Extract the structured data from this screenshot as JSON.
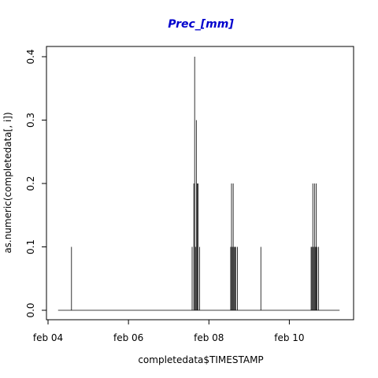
{
  "chart_data": {
    "type": "line",
    "style": "vertical-spikes",
    "title": "Prec_[mm]",
    "title_color": "#0000cd",
    "xlabel": "completedata$TIMESTAMP",
    "ylabel": "as.numeric(completedata[, i])",
    "xlim": [
      "2014-02-04T00:00",
      "2014-02-11T12:00"
    ],
    "ylim": [
      0,
      0.4
    ],
    "x_ticks": [
      {
        "value": "2014-02-04T00:00",
        "label": "feb 04"
      },
      {
        "value": "2014-02-06T00:00",
        "label": "feb 06"
      },
      {
        "value": "2014-02-08T00:00",
        "label": "feb 08"
      },
      {
        "value": "2014-02-10T00:00",
        "label": "feb 10"
      }
    ],
    "y_ticks": [
      {
        "value": 0,
        "label": "0.0"
      },
      {
        "value": 0.1,
        "label": "0.1"
      },
      {
        "value": 0.2,
        "label": "0.2"
      },
      {
        "value": 0.3,
        "label": "0.3"
      },
      {
        "value": 0.4,
        "label": "0.4"
      }
    ],
    "grid": false,
    "series_color": "#000000",
    "baseline_range": [
      "2014-02-04T06:00",
      "2014-02-11T06:00"
    ],
    "points": [
      {
        "x": "2014-02-04T14:00",
        "y": 0.1
      },
      {
        "x": "2014-02-07T14:00",
        "y": 0.1
      },
      {
        "x": "2014-02-07T15:00",
        "y": 0.2
      },
      {
        "x": "2014-02-07T16:00",
        "y": 0.1
      },
      {
        "x": "2014-02-07T17:00",
        "y": 0.2
      },
      {
        "x": "2014-02-07T15:30",
        "y": 0.4
      },
      {
        "x": "2014-02-07T16:30",
        "y": 0.3
      },
      {
        "x": "2014-02-07T17:30",
        "y": 0.2
      },
      {
        "x": "2014-02-07T18:30",
        "y": 0.1
      },
      {
        "x": "2014-02-08T13:00",
        "y": 0.1
      },
      {
        "x": "2014-02-08T13:30",
        "y": 0.2
      },
      {
        "x": "2014-02-08T14:00",
        "y": 0.1
      },
      {
        "x": "2014-02-08T14:30",
        "y": 0.2
      },
      {
        "x": "2014-02-08T15:00",
        "y": 0.1
      },
      {
        "x": "2014-02-08T15:30",
        "y": 0.1
      },
      {
        "x": "2014-02-08T16:00",
        "y": 0.1
      },
      {
        "x": "2014-02-08T17:00",
        "y": 0.1
      },
      {
        "x": "2014-02-09T07:00",
        "y": 0.1
      },
      {
        "x": "2014-02-10T13:00",
        "y": 0.1
      },
      {
        "x": "2014-02-10T13:30",
        "y": 0.1
      },
      {
        "x": "2014-02-10T14:00",
        "y": 0.2
      },
      {
        "x": "2014-02-10T14:30",
        "y": 0.1
      },
      {
        "x": "2014-02-10T15:00",
        "y": 0.2
      },
      {
        "x": "2014-02-10T15:30",
        "y": 0.1
      },
      {
        "x": "2014-02-10T16:00",
        "y": 0.2
      },
      {
        "x": "2014-02-10T16:30",
        "y": 0.1
      },
      {
        "x": "2014-02-10T17:30",
        "y": 0.1
      }
    ]
  }
}
